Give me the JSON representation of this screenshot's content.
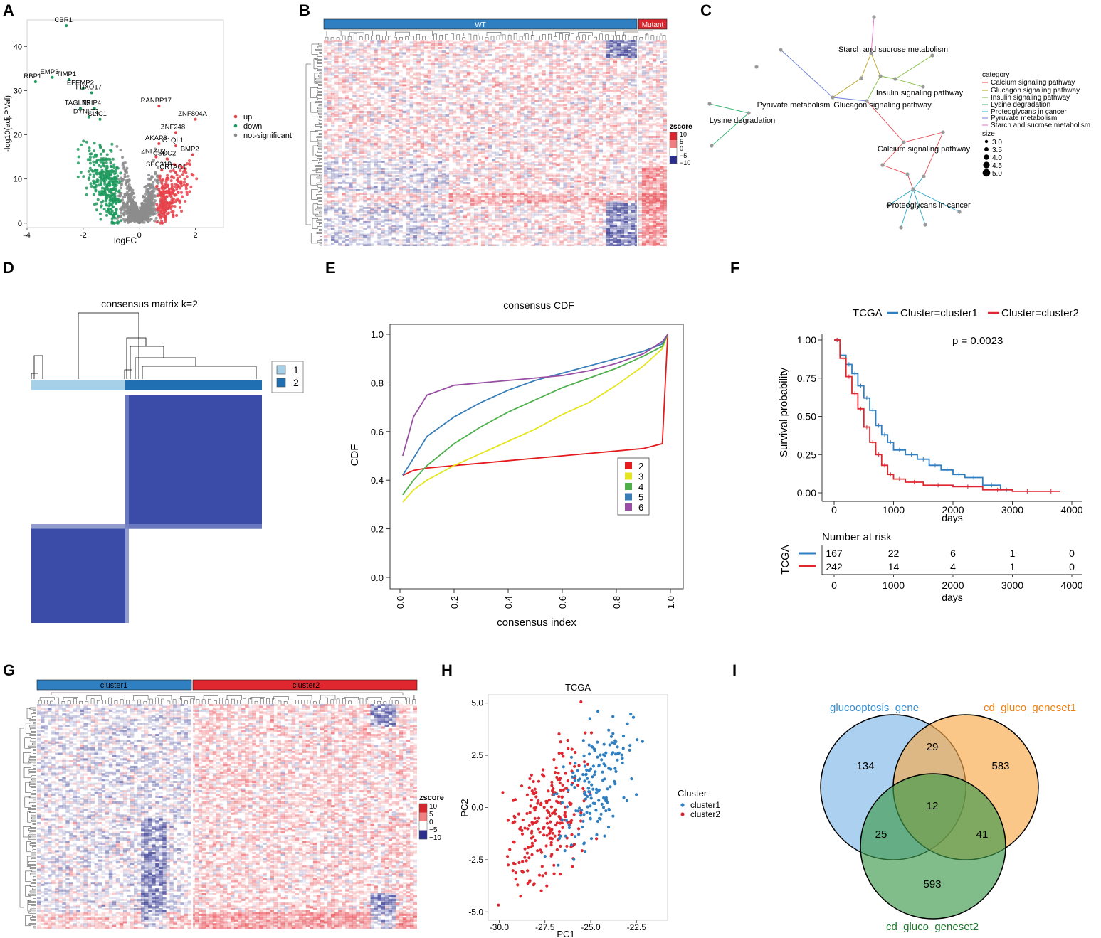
{
  "panels": {
    "A": "A",
    "B": "B",
    "C": "C",
    "D": "D",
    "E": "E",
    "F": "F",
    "G": "G",
    "H": "H",
    "I": "I"
  },
  "colors": {
    "up": "#e8434b",
    "down": "#1e9a5e",
    "ns": "#8c8c8c",
    "wt": "#2f7fc1",
    "mutant": "#d7262d",
    "cluster1": "#2f7fc1",
    "cluster2": "#e0262e",
    "heat_red": "#e8434b",
    "heat_blue": "#2b2e8c",
    "consensus_blue": "#3b4ba8"
  },
  "chart_data": [
    {
      "id": "A",
      "type": "scatter",
      "title": "",
      "xlabel": "logFC",
      "ylabel": "-log10(adj.P.Val)",
      "xlim": [
        -4,
        3
      ],
      "ylim": [
        -1,
        46
      ],
      "xticks": [
        "-4",
        "-2",
        "0",
        "2"
      ],
      "yticks": [
        "0",
        "10",
        "20",
        "30",
        "40"
      ],
      "legend": [
        "up",
        "down",
        "not-significant"
      ],
      "labeled_points": [
        {
          "label": "CBR1",
          "x": -2.6,
          "y": 44.7
        },
        {
          "label": "EMP3",
          "x": -3.1,
          "y": 33.0
        },
        {
          "label": "TIMP1",
          "x": -2.5,
          "y": 32.5
        },
        {
          "label": "RBP1",
          "x": -3.7,
          "y": 32.0
        },
        {
          "label": "EFEMP2",
          "x": -2.0,
          "y": 30.5
        },
        {
          "label": "FBXO17",
          "x": -1.7,
          "y": 29.5
        },
        {
          "label": "TAGLN2",
          "x": -2.1,
          "y": 26.0
        },
        {
          "label": "TRIP4",
          "x": -1.6,
          "y": 26.0
        },
        {
          "label": "DYNLT3",
          "x": -1.8,
          "y": 24.0
        },
        {
          "label": "CLIC1",
          "x": -1.4,
          "y": 23.5
        },
        {
          "label": "RANBP17",
          "x": 0.7,
          "y": 26.5
        },
        {
          "label": "ZNF804A",
          "x": 2.0,
          "y": 23.5
        },
        {
          "label": "ZNF248",
          "x": 1.3,
          "y": 20.5
        },
        {
          "label": "AKAP6",
          "x": 0.7,
          "y": 18.0
        },
        {
          "label": "C1QL1",
          "x": 1.3,
          "y": 17.5
        },
        {
          "label": "ZNF492",
          "x": 0.6,
          "y": 15.0
        },
        {
          "label": "CSDC2",
          "x": 1.0,
          "y": 14.5
        },
        {
          "label": "BMP2",
          "x": 1.9,
          "y": 15.5
        },
        {
          "label": "SEC31B",
          "x": 0.8,
          "y": 12.0
        },
        {
          "label": "CRTAC1",
          "x": 1.3,
          "y": 11.5
        }
      ]
    },
    {
      "id": "B",
      "type": "heatmap",
      "groups": [
        "WT",
        "Mutant"
      ],
      "legend_title": "zscore",
      "legend_ticks": [
        "10",
        "5",
        "0",
        "−5",
        "−10"
      ]
    },
    {
      "id": "C",
      "type": "network",
      "legend_title": "category",
      "categories": [
        "Calcium signaling pathway",
        "Glucagon signaling pathway",
        "Insulin signaling pathway",
        "Lysine degradation",
        "Proteoglycans in cancer",
        "Pyruvate metabolism",
        "Starch and sucrose metabolism"
      ],
      "size_title": "size",
      "sizes": [
        "3.0",
        "3.5",
        "4.0",
        "4.5",
        "5.0"
      ],
      "node_labels": [
        "Starch and sucrose metabolism",
        "Insulin signaling pathway",
        "Pyruvate metabolism",
        "Glucagon signaling pathway",
        "Lysine degradation",
        "Calcium signaling pathway",
        "Proteoglycans in cancer"
      ]
    },
    {
      "id": "D",
      "type": "heatmap",
      "title": "consensus matrix k=2",
      "legend": [
        "1",
        "2"
      ]
    },
    {
      "id": "E",
      "type": "line",
      "title": "consensus CDF",
      "xlabel": "consensus index",
      "ylabel": "CDF",
      "xlim": [
        0,
        1
      ],
      "ylim": [
        0,
        1
      ],
      "xticks": [
        "0.0",
        "0.2",
        "0.4",
        "0.6",
        "0.8",
        "1.0"
      ],
      "yticks": [
        "0.0",
        "0.2",
        "0.4",
        "0.6",
        "0.8",
        "1.0"
      ],
      "x": [
        0.01,
        0.05,
        0.1,
        0.2,
        0.3,
        0.4,
        0.5,
        0.6,
        0.7,
        0.8,
        0.9,
        0.97,
        0.99
      ],
      "series": [
        {
          "name": "2",
          "color": "#e41a1c",
          "values": [
            0.42,
            0.44,
            0.45,
            0.46,
            0.47,
            0.48,
            0.49,
            0.5,
            0.51,
            0.52,
            0.53,
            0.55,
            1.0
          ]
        },
        {
          "name": "3",
          "color": "#e5e51c",
          "values": [
            0.31,
            0.36,
            0.4,
            0.46,
            0.51,
            0.56,
            0.61,
            0.67,
            0.72,
            0.79,
            0.87,
            0.94,
            1.0
          ]
        },
        {
          "name": "4",
          "color": "#4daf4a",
          "values": [
            0.34,
            0.4,
            0.46,
            0.55,
            0.62,
            0.68,
            0.73,
            0.78,
            0.82,
            0.86,
            0.91,
            0.95,
            1.0
          ]
        },
        {
          "name": "5",
          "color": "#377eb8",
          "values": [
            0.42,
            0.49,
            0.58,
            0.66,
            0.72,
            0.77,
            0.81,
            0.84,
            0.87,
            0.9,
            0.93,
            0.96,
            1.0
          ]
        },
        {
          "name": "6",
          "color": "#984ea3",
          "values": [
            0.5,
            0.66,
            0.75,
            0.79,
            0.8,
            0.81,
            0.82,
            0.83,
            0.85,
            0.88,
            0.92,
            0.97,
            1.0
          ]
        }
      ]
    },
    {
      "id": "F",
      "type": "line",
      "title": "TCGA",
      "legend": [
        "Cluster=cluster1",
        "Cluster=cluster2"
      ],
      "pvalue": "p = 0.0023",
      "xlabel": "days",
      "ylabel": "Survival probability",
      "xlim": [
        0,
        4000
      ],
      "ylim": [
        0,
        1
      ],
      "xticks": [
        "0",
        "1000",
        "2000",
        "3000",
        "4000"
      ],
      "yticks": [
        "0.00",
        "0.25",
        "0.50",
        "0.75",
        "1.00"
      ],
      "series": [
        {
          "name": "cluster1",
          "color": "#2f7fc1",
          "x": [
            0,
            100,
            200,
            300,
            400,
            500,
            600,
            700,
            800,
            900,
            1000,
            1200,
            1400,
            1600,
            1800,
            2000,
            2200,
            2500,
            2800,
            3000
          ],
          "values": [
            1.0,
            0.9,
            0.84,
            0.78,
            0.7,
            0.62,
            0.54,
            0.44,
            0.38,
            0.33,
            0.28,
            0.25,
            0.22,
            0.18,
            0.15,
            0.12,
            0.1,
            0.05,
            0.02,
            0.02
          ]
        },
        {
          "name": "cluster2",
          "color": "#e0262e",
          "x": [
            0,
            100,
            200,
            300,
            400,
            500,
            600,
            700,
            800,
            900,
            1000,
            1200,
            1500,
            2000,
            2500,
            3000,
            3500,
            3800
          ],
          "values": [
            1.0,
            0.88,
            0.76,
            0.65,
            0.55,
            0.43,
            0.33,
            0.25,
            0.18,
            0.12,
            0.09,
            0.07,
            0.05,
            0.04,
            0.02,
            0.01,
            0.01,
            0.01
          ]
        }
      ],
      "risk_title": "Number at risk",
      "risk_ylabel": "TCGA",
      "risk_table": [
        [
          "167",
          "22",
          "6",
          "1",
          "0"
        ],
        [
          "242",
          "14",
          "4",
          "1",
          "0"
        ]
      ],
      "risk_xticks": [
        "0",
        "1000",
        "2000",
        "3000",
        "4000"
      ],
      "risk_xlabel": "days"
    },
    {
      "id": "G",
      "type": "heatmap",
      "groups": [
        "cluster1",
        "cluster2"
      ],
      "legend_title": "zscore",
      "legend_ticks": [
        "10",
        "5",
        "0",
        "−5",
        "−10"
      ]
    },
    {
      "id": "H",
      "type": "scatter",
      "title": "TCGA",
      "xlabel": "PC1",
      "ylabel": "PC2",
      "xlim": [
        -30.6,
        -20.8
      ],
      "ylim": [
        -5.4,
        5.4
      ],
      "xticks": [
        "-30.0",
        "-27.5",
        "-25.0",
        "-22.5"
      ],
      "yticks": [
        "5.0",
        "2.5",
        "0.0",
        "-2.5",
        "-5.0"
      ],
      "legend_title": "Cluster",
      "legend": [
        "cluster1",
        "cluster2"
      ]
    },
    {
      "id": "I",
      "type": "venn",
      "sets": [
        "glucooptosis_gene",
        "cd_gluco_geneset1",
        "cd_gluco_geneset2"
      ],
      "regions": {
        "only1": "134",
        "only2": "583",
        "only3": "593",
        "s12": "29",
        "s13": "25",
        "s23": "41",
        "s123": "12"
      }
    }
  ]
}
